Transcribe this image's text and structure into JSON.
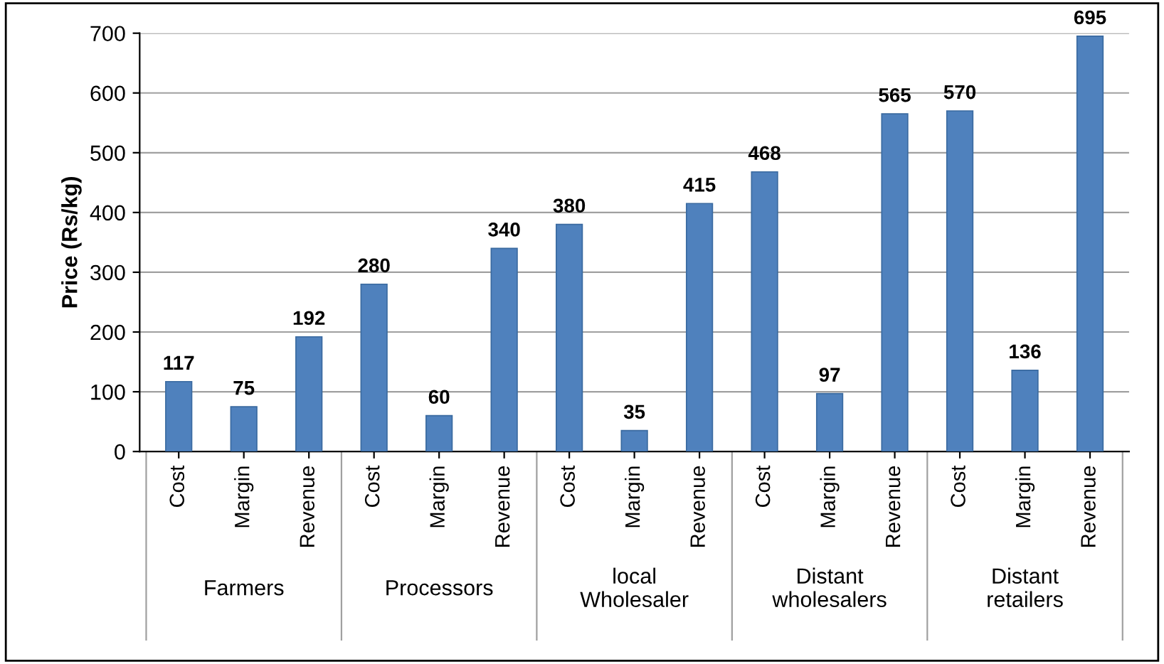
{
  "chart_data": {
    "type": "bar",
    "ylabel": "Price (Rs/kg)",
    "categories": [
      "Cost",
      "Margin",
      "Revenue",
      "Cost",
      "Margin",
      "Revenue",
      "Cost",
      "Margin",
      "Revenue",
      "Cost",
      "Margin",
      "Revenue",
      "Cost",
      "Margin",
      "Revenue"
    ],
    "values": [
      117,
      75,
      192,
      280,
      60,
      340,
      380,
      35,
      415,
      468,
      97,
      565,
      570,
      136,
      695
    ],
    "color": "#4f81bd",
    "annotations": [
      "Farmers",
      "Processors",
      "local\nWholesaler",
      "Distant\nwholesalers",
      "Distant\nretailers"
    ],
    "ylim": [
      0,
      700
    ],
    "yticks": [
      0,
      100,
      200,
      300,
      400,
      500,
      600,
      700
    ],
    "grid": "y",
    "data_labels": true
  }
}
